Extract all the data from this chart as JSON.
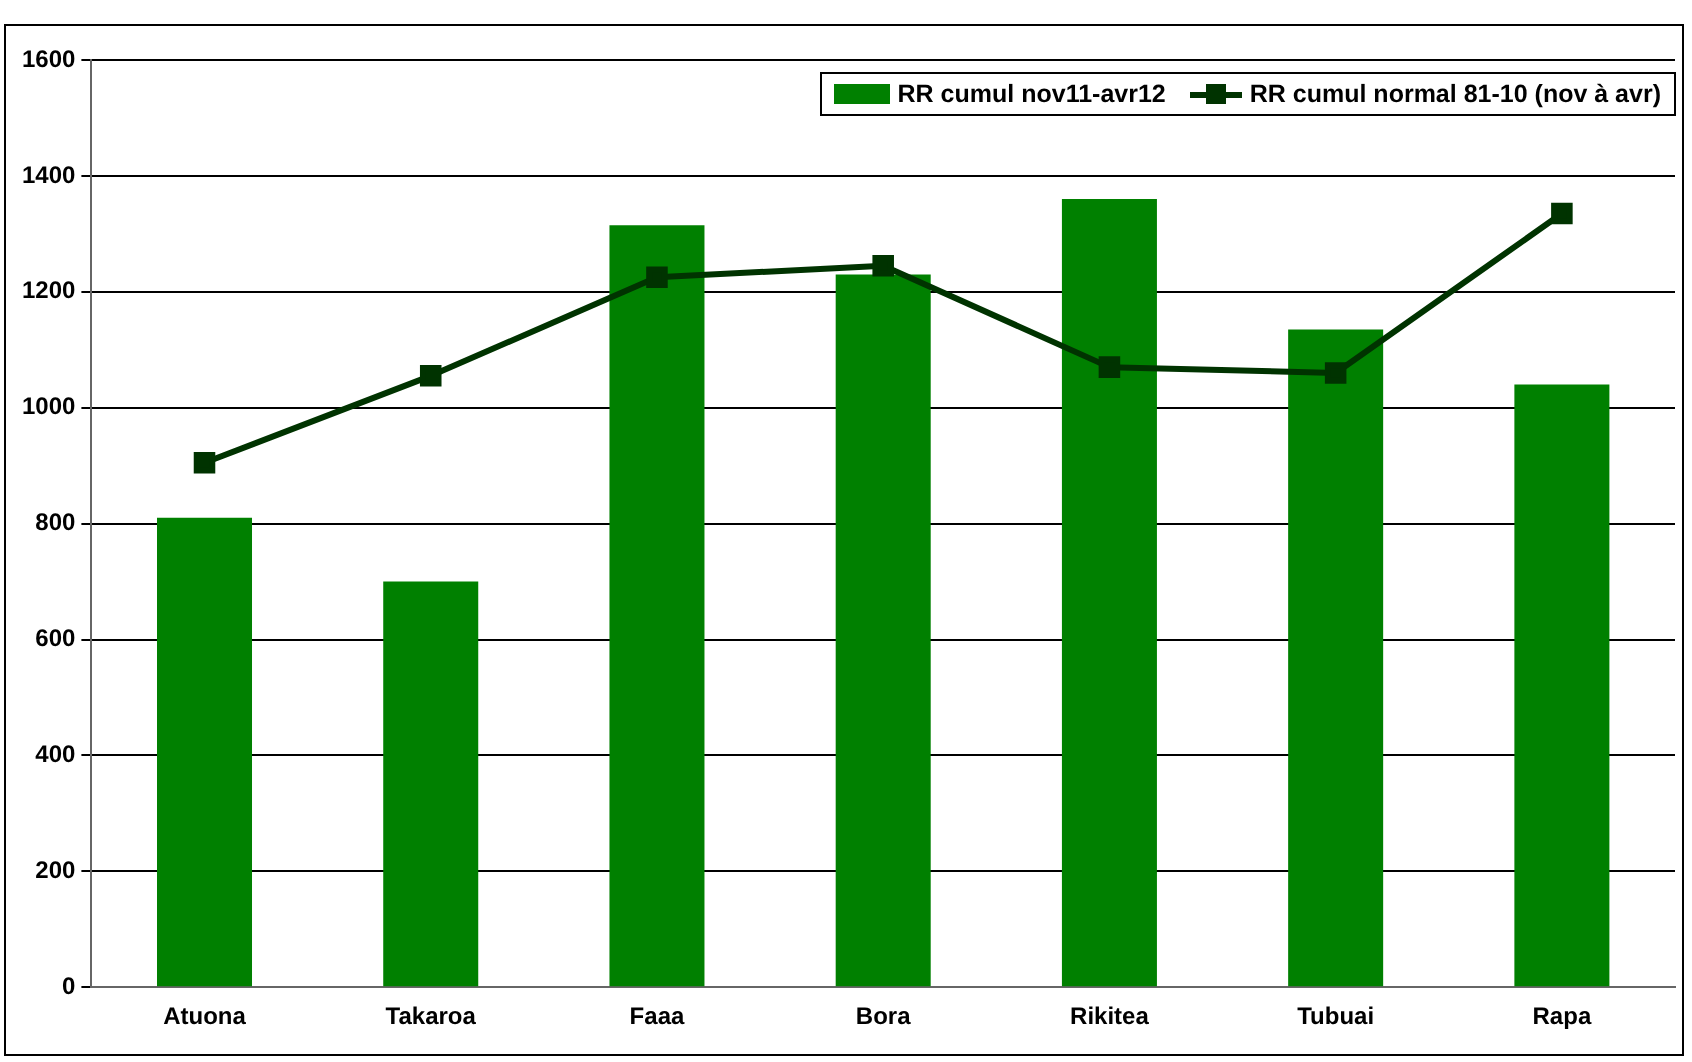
{
  "chart_data": {
    "type": "bar",
    "categories": [
      "Atuona",
      "Takaroa",
      "Faaa",
      "Bora",
      "Rikitea",
      "Tubuai",
      "Rapa"
    ],
    "series": [
      {
        "name": "RR cumul nov11-avr12",
        "color": "#008000",
        "values": [
          810,
          700,
          1315,
          1230,
          1360,
          1135,
          1040
        ]
      },
      {
        "name": "RR cumul normal 81-10 (nov à avr)",
        "type": "line",
        "color": "#003300",
        "marker": "square",
        "values": [
          905,
          1055,
          1225,
          1245,
          1070,
          1060,
          1335
        ]
      }
    ],
    "ylim": [
      0,
      1600
    ],
    "yticks": [
      0,
      200,
      400,
      600,
      800,
      1000,
      1200,
      1400,
      1600
    ],
    "grid": "y",
    "legend": "top right"
  }
}
